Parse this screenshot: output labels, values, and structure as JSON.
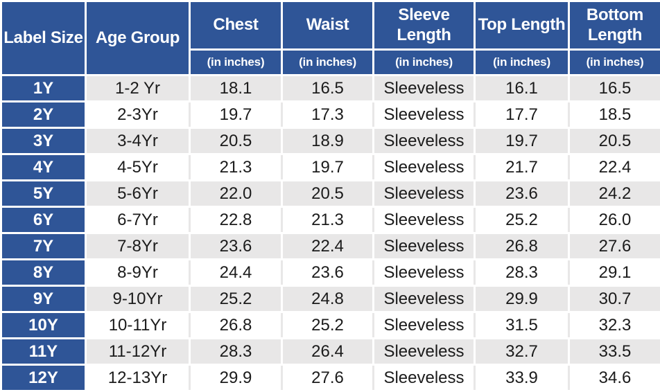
{
  "colors": {
    "header_bg": "#2F5597",
    "header_text": "#FFFFFF",
    "band_gray": "#E8E7E7",
    "band_white": "#FFFFFF",
    "grid_line": "#FFFFFF",
    "data_text": "#1B1B1B"
  },
  "table": {
    "columns": [
      {
        "key": "label_size",
        "label": "Label Size",
        "unit": ""
      },
      {
        "key": "age_group",
        "label": "Age Group",
        "unit": ""
      },
      {
        "key": "chest",
        "label": "Chest",
        "unit": "(in inches)"
      },
      {
        "key": "waist",
        "label": "Waist",
        "unit": "(in inches)"
      },
      {
        "key": "sleeve_length",
        "label": "Sleeve Length",
        "unit": "(in inches)"
      },
      {
        "key": "top_length",
        "label": "Top Length",
        "unit": "(in inches)"
      },
      {
        "key": "bottom_length",
        "label": "Bottom Length",
        "unit": "(in inches)"
      }
    ],
    "rows": [
      {
        "label_size": "1Y",
        "age_group": "1-2 Yr",
        "chest": "18.1",
        "waist": "16.5",
        "sleeve_length": "Sleeveless",
        "top_length": "16.1",
        "bottom_length": "16.5"
      },
      {
        "label_size": "2Y",
        "age_group": "2-3Yr",
        "chest": "19.7",
        "waist": "17.3",
        "sleeve_length": "Sleeveless",
        "top_length": "17.7",
        "bottom_length": "18.5"
      },
      {
        "label_size": "3Y",
        "age_group": "3-4Yr",
        "chest": "20.5",
        "waist": "18.9",
        "sleeve_length": "Sleeveless",
        "top_length": "19.7",
        "bottom_length": "20.5"
      },
      {
        "label_size": "4Y",
        "age_group": "4-5Yr",
        "chest": "21.3",
        "waist": "19.7",
        "sleeve_length": "Sleeveless",
        "top_length": "21.7",
        "bottom_length": "22.4"
      },
      {
        "label_size": "5Y",
        "age_group": "5-6Yr",
        "chest": "22.0",
        "waist": "20.5",
        "sleeve_length": "Sleeveless",
        "top_length": "23.6",
        "bottom_length": "24.2"
      },
      {
        "label_size": "6Y",
        "age_group": "6-7Yr",
        "chest": "22.8",
        "waist": "21.3",
        "sleeve_length": "Sleeveless",
        "top_length": "25.2",
        "bottom_length": "26.0"
      },
      {
        "label_size": "7Y",
        "age_group": "7-8Yr",
        "chest": "23.6",
        "waist": "22.4",
        "sleeve_length": "Sleeveless",
        "top_length": "26.8",
        "bottom_length": "27.6"
      },
      {
        "label_size": "8Y",
        "age_group": "8-9Yr",
        "chest": "24.4",
        "waist": "23.6",
        "sleeve_length": "Sleeveless",
        "top_length": "28.3",
        "bottom_length": "29.1"
      },
      {
        "label_size": "9Y",
        "age_group": "9-10Yr",
        "chest": "25.2",
        "waist": "24.8",
        "sleeve_length": "Sleeveless",
        "top_length": "29.9",
        "bottom_length": "30.7"
      },
      {
        "label_size": "10Y",
        "age_group": "10-11Yr",
        "chest": "26.8",
        "waist": "25.2",
        "sleeve_length": "Sleeveless",
        "top_length": "31.5",
        "bottom_length": "32.3"
      },
      {
        "label_size": "11Y",
        "age_group": "11-12Yr",
        "chest": "28.3",
        "waist": "26.4",
        "sleeve_length": "Sleeveless",
        "top_length": "32.7",
        "bottom_length": "33.5"
      },
      {
        "label_size": "12Y",
        "age_group": "12-13Yr",
        "chest": "29.9",
        "waist": "27.6",
        "sleeve_length": "Sleeveless",
        "top_length": "33.9",
        "bottom_length": "34.6"
      }
    ]
  },
  "chart_data": {
    "type": "table",
    "columns": [
      "Label Size",
      "Age Group",
      "Chest (in inches)",
      "Waist (in inches)",
      "Sleeve Length (in inches)",
      "Top Length (in inches)",
      "Bottom Length (in inches)"
    ],
    "rows": [
      [
        "1Y",
        "1-2 Yr",
        18.1,
        16.5,
        "Sleeveless",
        16.1,
        16.5
      ],
      [
        "2Y",
        "2-3Yr",
        19.7,
        17.3,
        "Sleeveless",
        17.7,
        18.5
      ],
      [
        "3Y",
        "3-4Yr",
        20.5,
        18.9,
        "Sleeveless",
        19.7,
        20.5
      ],
      [
        "4Y",
        "4-5Yr",
        21.3,
        19.7,
        "Sleeveless",
        21.7,
        22.4
      ],
      [
        "5Y",
        "5-6Yr",
        22.0,
        20.5,
        "Sleeveless",
        23.6,
        24.2
      ],
      [
        "6Y",
        "6-7Yr",
        22.8,
        21.3,
        "Sleeveless",
        25.2,
        26.0
      ],
      [
        "7Y",
        "7-8Yr",
        23.6,
        22.4,
        "Sleeveless",
        26.8,
        27.6
      ],
      [
        "8Y",
        "8-9Yr",
        24.4,
        23.6,
        "Sleeveless",
        28.3,
        29.1
      ],
      [
        "9Y",
        "9-10Yr",
        25.2,
        24.8,
        "Sleeveless",
        29.9,
        30.7
      ],
      [
        "10Y",
        "10-11Yr",
        26.8,
        25.2,
        "Sleeveless",
        31.5,
        32.3
      ],
      [
        "11Y",
        "11-12Yr",
        28.3,
        26.4,
        "Sleeveless",
        32.7,
        33.5
      ],
      [
        "12Y",
        "12-13Yr",
        29.9,
        27.6,
        "Sleeveless",
        33.9,
        34.6
      ]
    ]
  }
}
